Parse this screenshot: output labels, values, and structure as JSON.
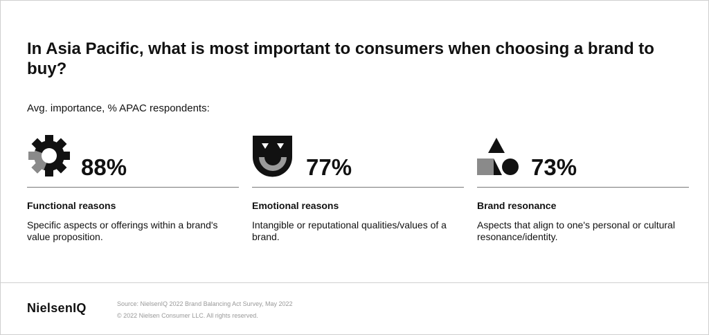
{
  "title": "In Asia Pacific, what is most important to consumers when choosing a brand to buy?",
  "subtitle": "Avg. importance, % APAC respondents:",
  "items": [
    {
      "percent": "88%",
      "heading": "Functional reasons",
      "description": "Specific aspects or offerings within a brand's value proposition."
    },
    {
      "percent": "77%",
      "heading": "Emotional reasons",
      "description": "Intangible or reputational qualities/values of a brand."
    },
    {
      "percent": "73%",
      "heading": "Brand resonance",
      "description": "Aspects that align to one's personal or cultural resonance/identity."
    }
  ],
  "footer": {
    "logo": "NielsenIQ",
    "source": "Source: NielsenIQ 2022 Brand Balancing Act Survey, May 2022",
    "copyright": "© 2022 Nielsen Consumer LLC. All rights reserved."
  }
}
